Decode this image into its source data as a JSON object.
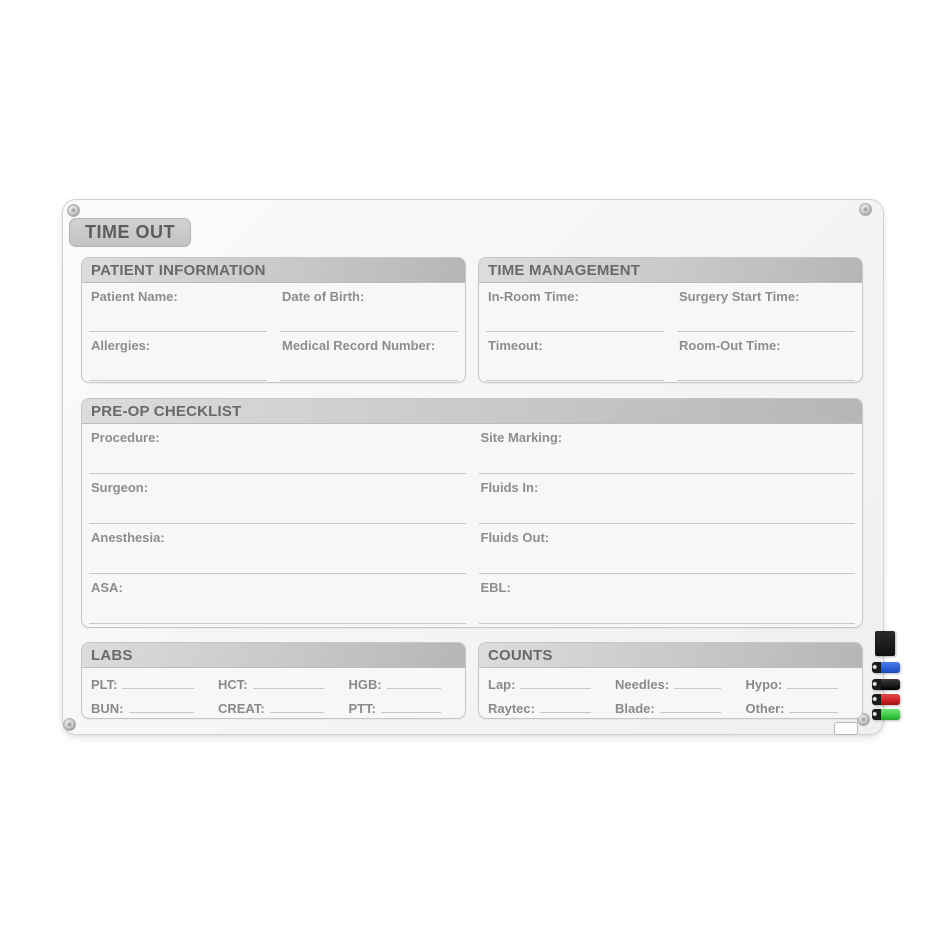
{
  "board": {
    "title": "TIME OUT",
    "sections": {
      "patient_information": {
        "title": "PATIENT INFORMATION",
        "fields": [
          "Patient Name:",
          "Date of Birth:",
          "Allergies:",
          "Medical Record Number:"
        ]
      },
      "time_management": {
        "title": "TIME MANAGEMENT",
        "fields": [
          "In-Room Time:",
          "Surgery Start Time:",
          "Timeout:",
          "Room-Out Time:"
        ]
      },
      "preop_checklist": {
        "title": "PRE-OP CHECKLIST",
        "fields": [
          "Procedure:",
          "Site Marking:",
          "Surgeon:",
          "Fluids In:",
          "Anesthesia:",
          "Fluids Out:",
          "ASA:",
          "EBL:"
        ]
      },
      "labs": {
        "title": "LABS",
        "fields": [
          "PLT:",
          "HCT:",
          "HGB:",
          "BUN:",
          "CREAT:",
          "PTT:"
        ]
      },
      "counts": {
        "title": "COUNTS",
        "fields": [
          "Lap:",
          "Needles:",
          "Hypo:",
          "Raytec:",
          "Blade:",
          "Other:"
        ]
      }
    }
  },
  "accessories": {
    "eraser_color": "#161616",
    "marker_colors": {
      "blue": "#2b5fd7",
      "black": "#1a1a1a",
      "red": "#cd2020",
      "green": "#3bcb43"
    }
  },
  "colors": {
    "board_surface": "#f7f7f7",
    "header_bar": "#c8c8c8",
    "header_text": "#696969",
    "label_text": "#8d8d8d",
    "line": "#c7c7c7",
    "badge_bg": "#c9c9c9"
  }
}
